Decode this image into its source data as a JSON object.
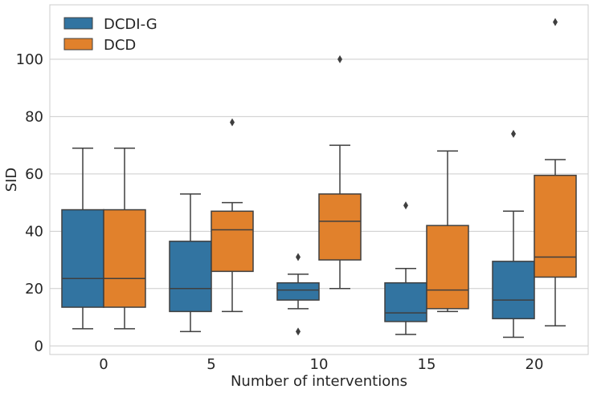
{
  "chart_data": {
    "type": "box",
    "title": "",
    "xlabel": "Number of interventions",
    "ylabel": "SID",
    "categories": [
      "0",
      "5",
      "10",
      "15",
      "20"
    ],
    "yticks": [
      0,
      20,
      40,
      60,
      80,
      100
    ],
    "ylim": [
      -3,
      119
    ],
    "grid": true,
    "legend": {
      "position": "top-left",
      "entries": [
        "DCDI-G",
        "DCD"
      ]
    },
    "series": [
      {
        "name": "DCDI-G",
        "color": "#3274a1",
        "boxes": [
          {
            "whisker_low": 6,
            "q1": 13.5,
            "median": 23.5,
            "q3": 47.5,
            "whisker_high": 69,
            "outliers": []
          },
          {
            "whisker_low": 5,
            "q1": 12,
            "median": 20,
            "q3": 36.5,
            "whisker_high": 53,
            "outliers": []
          },
          {
            "whisker_low": 13,
            "q1": 16,
            "median": 19.5,
            "q3": 22,
            "whisker_high": 25,
            "outliers": [
              31,
              5
            ]
          },
          {
            "whisker_low": 4,
            "q1": 8.5,
            "median": 11.5,
            "q3": 22,
            "whisker_high": 27,
            "outliers": [
              49
            ]
          },
          {
            "whisker_low": 3,
            "q1": 9.5,
            "median": 16,
            "q3": 29.5,
            "whisker_high": 47,
            "outliers": [
              74
            ]
          }
        ]
      },
      {
        "name": "DCD",
        "color": "#e1812c",
        "boxes": [
          {
            "whisker_low": 6,
            "q1": 13.5,
            "median": 23.5,
            "q3": 47.5,
            "whisker_high": 69,
            "outliers": []
          },
          {
            "whisker_low": 12,
            "q1": 26,
            "median": 40.5,
            "q3": 47,
            "whisker_high": 50,
            "outliers": [
              78
            ]
          },
          {
            "whisker_low": 20,
            "q1": 30,
            "median": 43.5,
            "q3": 53,
            "whisker_high": 70,
            "outliers": [
              100
            ]
          },
          {
            "whisker_low": 12,
            "q1": 13,
            "median": 19.5,
            "q3": 42,
            "whisker_high": 68,
            "outliers": []
          },
          {
            "whisker_low": 7,
            "q1": 24,
            "median": 31,
            "q3": 59.5,
            "whisker_high": 65,
            "outliers": [
              113
            ]
          }
        ]
      }
    ]
  }
}
